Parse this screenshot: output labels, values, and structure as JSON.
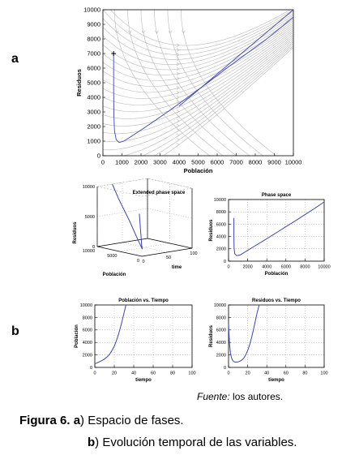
{
  "panel_labels": {
    "a": "a",
    "b": "b"
  },
  "source_credit": {
    "prefix": "Fuente:",
    "rest": " los autores."
  },
  "caption": {
    "figure_label": "Figura 6.",
    "line1_letter": "a",
    "line1_text": ") Espacio de fases.",
    "line2_letter": "b",
    "line2_text": ") Evolución temporal de las variables."
  },
  "colors": {
    "trajectory": "#3c44b8",
    "streamline": "#b8b8b8",
    "axis": "#000000",
    "grid": "#9a9a9a"
  },
  "chart_data": [
    {
      "id": "a",
      "type": "line",
      "title": "",
      "xlabel": "Población",
      "ylabel": "Residuos",
      "xlim": [
        0,
        10000
      ],
      "ylim": [
        0,
        10000
      ],
      "xticks": [
        0,
        1000,
        2000,
        3000,
        4000,
        5000,
        6000,
        7000,
        8000,
        9000,
        10000
      ],
      "yticks": [
        0,
        1000,
        2000,
        3000,
        4000,
        5000,
        6000,
        7000,
        8000,
        9000,
        10000
      ],
      "grid": false,
      "background": "streamlines",
      "start_marker": [
        560,
        7000
      ],
      "series": [
        {
          "x": [
            560,
            560,
            575,
            610,
            700,
            850,
            1100,
            1700,
            2500,
            3500,
            4500,
            5500,
            6500,
            7500,
            8500,
            9500,
            10000
          ],
          "y": [
            7000,
            4500,
            2800,
            1700,
            1100,
            900,
            1000,
            1500,
            2200,
            3100,
            4050,
            5000,
            6000,
            6950,
            7900,
            8950,
            9500
          ]
        },
        {
          "x": [
            4000,
            5000,
            6000,
            7000,
            8000,
            9000,
            10000
          ],
          "y": [
            3400,
            4500,
            5600,
            6700,
            7800,
            8900,
            10000
          ]
        }
      ]
    },
    {
      "id": "b1",
      "type": "line",
      "title": "Extended phase space",
      "xlabel": "time",
      "ylabel": "Residuos",
      "zlabel": "Población",
      "xlim": [
        0,
        100
      ],
      "ylim": [
        0,
        10000
      ],
      "zlim": [
        0,
        10000
      ],
      "xticks": [
        0,
        50,
        100
      ],
      "yticks": [
        0,
        5000,
        10000
      ],
      "zticks": [
        0,
        5000,
        10000
      ],
      "grid": true,
      "series": [
        {
          "t": [
            0,
            5,
            10,
            15,
            20,
            25,
            30
          ],
          "x": [
            560,
            600,
            1000,
            2500,
            5000,
            8000,
            10000
          ],
          "y": [
            7000,
            1700,
            900,
            2000,
            4800,
            7900,
            10000
          ]
        }
      ]
    },
    {
      "id": "b2",
      "type": "line",
      "title": "Phase space",
      "xlabel": "Población",
      "ylabel": "Residuos",
      "xlim": [
        0,
        10000
      ],
      "ylim": [
        0,
        10000
      ],
      "xticks": [
        0,
        2000,
        4000,
        6000,
        8000,
        10000
      ],
      "yticks": [
        0,
        2000,
        4000,
        6000,
        8000,
        10000
      ],
      "grid": true,
      "series": [
        {
          "x": [
            560,
            560,
            580,
            650,
            850,
            1200,
            2000,
            3000,
            4000,
            5000,
            6000,
            7000,
            8000,
            9000,
            10000
          ],
          "y": [
            7000,
            4000,
            2200,
            1200,
            900,
            1000,
            1750,
            2700,
            3650,
            4600,
            5600,
            6550,
            7550,
            8550,
            9600
          ]
        }
      ]
    },
    {
      "id": "b3",
      "type": "line",
      "title": "Población vs. Tiempo",
      "xlabel": "tiempo",
      "ylabel": "Población",
      "xlim": [
        0,
        100
      ],
      "ylim": [
        0,
        10000
      ],
      "xticks": [
        0,
        20,
        40,
        60,
        80,
        100
      ],
      "yticks": [
        0,
        2000,
        4000,
        6000,
        8000,
        10000
      ],
      "grid": true,
      "series": [
        {
          "x": [
            0,
            2,
            4,
            6,
            8,
            10,
            12,
            14,
            16,
            18,
            20,
            22,
            24,
            26,
            28,
            30,
            32
          ],
          "y": [
            560,
            700,
            850,
            1000,
            1150,
            1350,
            1600,
            1900,
            2300,
            2800,
            3400,
            4200,
            5100,
            6200,
            7400,
            8700,
            10000
          ]
        }
      ]
    },
    {
      "id": "b4",
      "type": "line",
      "title": "Residuos vs. Tiempo",
      "xlabel": "tiempo",
      "ylabel": "Residuos",
      "xlim": [
        0,
        100
      ],
      "ylim": [
        0,
        10000
      ],
      "xticks": [
        0,
        20,
        40,
        60,
        80,
        100
      ],
      "yticks": [
        0,
        2000,
        4000,
        6000,
        8000,
        10000
      ],
      "grid": true,
      "series": [
        {
          "x": [
            0,
            0.5,
            1,
            2,
            3,
            4,
            5,
            6,
            8,
            10,
            12,
            14,
            16,
            18,
            20,
            22,
            24,
            26,
            28,
            30,
            32
          ],
          "y": [
            7000,
            5200,
            3800,
            2300,
            1600,
            1200,
            1000,
            900,
            850,
            900,
            1000,
            1200,
            1500,
            2000,
            2700,
            3600,
            4700,
            6000,
            7400,
            8800,
            10000
          ]
        }
      ]
    }
  ]
}
